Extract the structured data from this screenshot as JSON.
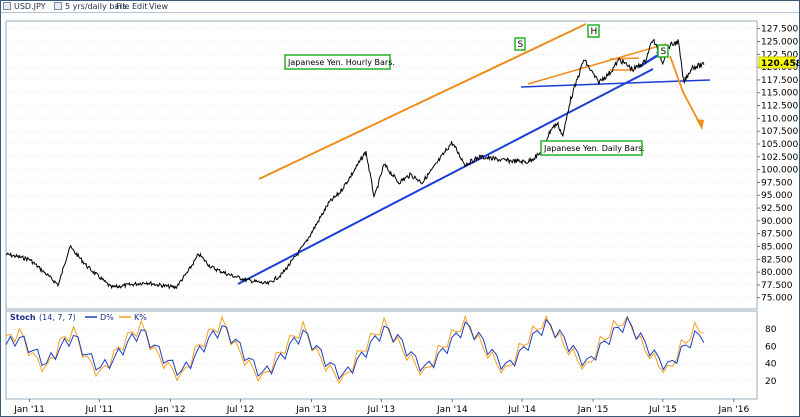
{
  "window": {
    "symbol": "USD.JPY",
    "period": "5 yrs/daily bars",
    "menu": [
      "File",
      "Edit",
      "View"
    ]
  },
  "price_panel": {
    "last_price": "120.458",
    "y_ticks": [
      "127.500",
      "125.000",
      "122.500",
      "120.000",
      "117.500",
      "115.000",
      "112.500",
      "110.000",
      "107.500",
      "105.000",
      "102.500",
      "100.000",
      "97.500",
      "95.000",
      "92.500",
      "90.000",
      "87.500",
      "85.000",
      "82.500",
      "80.000",
      "77.500",
      "75.000"
    ],
    "annotations": {
      "hourly_label": "Japanese Yen. Hourly Bars.",
      "daily_label": "Japanese Yen. Daily Bars.",
      "left_shoulder": "S",
      "head": "H",
      "right_shoulder": "S"
    }
  },
  "stoch_panel": {
    "title": "Stoch",
    "params": "(14, 7, 7)",
    "legend_d": "D%",
    "legend_k": "K%",
    "y_ticks": [
      "80",
      "60",
      "40",
      "20"
    ]
  },
  "x_axis": {
    "labels": [
      "Jan '11",
      "Jul '11",
      "Jan '12",
      "Jul '12",
      "Jan '13",
      "Jul '13",
      "Jan '14",
      "Jul '14",
      "Jan '15",
      "Jul '15",
      "Jan '16"
    ]
  },
  "colors": {
    "price_line": "#000000",
    "uptrend_line": "#1a3fd6",
    "channel_line": "#f08c1a",
    "label_border": "#22b422",
    "stoch_d": "#1c3fbf",
    "stoch_k": "#f5a020",
    "last_price_bg": "#ffff00"
  },
  "chart_data": [
    {
      "type": "line",
      "title": "USD.JPY",
      "x_unit": "date",
      "x": [
        "2010-11-01",
        "2011-01-01",
        "2011-03-17",
        "2011-04-15",
        "2011-06-01",
        "2011-08-01",
        "2011-10-31",
        "2011-12-01",
        "2012-01-15",
        "2012-02-15",
        "2012-03-15",
        "2012-04-15",
        "2012-06-01",
        "2012-07-15",
        "2012-09-10",
        "2012-10-15",
        "2012-11-15",
        "2012-12-15",
        "2013-01-15",
        "2013-02-15",
        "2013-03-15",
        "2013-04-15",
        "2013-05-22",
        "2013-06-13",
        "2013-07-08",
        "2013-08-15",
        "2013-09-15",
        "2013-10-15",
        "2013-11-15",
        "2013-12-31",
        "2014-02-03",
        "2014-03-15",
        "2014-05-15",
        "2014-07-15",
        "2014-08-15",
        "2014-09-15",
        "2014-10-01",
        "2014-10-15",
        "2014-11-01",
        "2014-12-08",
        "2015-01-15",
        "2015-02-15",
        "2015-03-10",
        "2015-04-15",
        "2015-05-15",
        "2015-06-05",
        "2015-07-01",
        "2015-07-15",
        "2015-08-10",
        "2015-08-24",
        "2015-09-15",
        "2015-10-15"
      ],
      "y": [
        83.5,
        82.5,
        77.5,
        85.0,
        81.0,
        77.0,
        78.0,
        77.5,
        77.0,
        80.0,
        83.5,
        81.0,
        79.5,
        78.5,
        77.7,
        79.5,
        82.5,
        85.5,
        89.5,
        93.5,
        95.5,
        99.0,
        103.5,
        94.5,
        101.0,
        97.5,
        99.0,
        97.5,
        100.5,
        105.3,
        101.0,
        102.5,
        101.8,
        101.5,
        103.0,
        108.0,
        109.0,
        106.5,
        113.0,
        121.5,
        117.0,
        119.0,
        121.5,
        119.5,
        121.0,
        125.5,
        121.0,
        124.0,
        125.0,
        117.0,
        120.0,
        120.45
      ],
      "ylim": [
        73.0,
        128.8
      ],
      "xlim": [
        "2010-11-01",
        "2016-03-01"
      ]
    },
    {
      "type": "line",
      "title": "Stoch (14, 7, 7)",
      "series": [
        {
          "name": "D%",
          "values": [
            62,
            70,
            55,
            40,
            58,
            72,
            50,
            35,
            45,
            64,
            78,
            60,
            42,
            30,
            48,
            68,
            82,
            66,
            44,
            28,
            40,
            60,
            76,
            58,
            38,
            26,
            42,
            62,
            80,
            70,
            50,
            34,
            48,
            66,
            84,
            72,
            52,
            36,
            50,
            70,
            86,
            74,
            56,
            40,
            58,
            76,
            88,
            70,
            50,
            36,
            54,
            72
          ]
        },
        {
          "name": "K%",
          "values": [
            68,
            76,
            48,
            34,
            64,
            78,
            44,
            28,
            50,
            70,
            84,
            54,
            36,
            24,
            54,
            74,
            88,
            60,
            38,
            22,
            46,
            66,
            82,
            52,
            32,
            20,
            48,
            68,
            86,
            64,
            44,
            28,
            54,
            72,
            90,
            66,
            46,
            30,
            56,
            76,
            92,
            68,
            50,
            34,
            64,
            82,
            94,
            64,
            44,
            30,
            60,
            80
          ]
        }
      ],
      "ylim": [
        0,
        100
      ]
    }
  ]
}
